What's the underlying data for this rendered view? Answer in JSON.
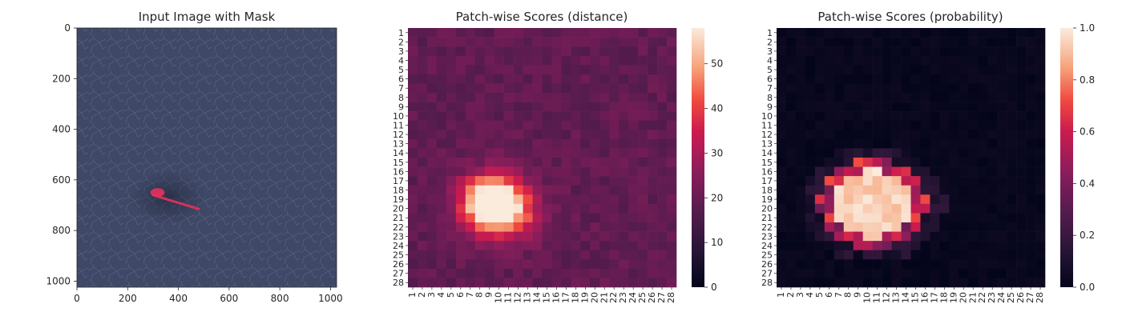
{
  "chart_data": [
    {
      "type": "image",
      "title": "Input Image with Mask",
      "xlim": [
        0,
        1024
      ],
      "ylim": [
        1024,
        0
      ],
      "x_ticks": [
        0,
        200,
        400,
        600,
        800,
        1000
      ],
      "y_ticks": [
        0,
        200,
        400,
        600,
        800,
        1000
      ],
      "background_color": "#3f4866",
      "mask_color": "#e8315a",
      "mask_region": {
        "blob_center": [
          318,
          650
        ],
        "blob_radius": [
          28,
          17
        ],
        "streak_from": [
          300,
          660
        ],
        "streak_to": [
          480,
          715
        ]
      }
    },
    {
      "type": "heatmap",
      "title": "Patch-wise Scores (distance)",
      "rows": 28,
      "cols": 28,
      "colorbar": {
        "min": 0,
        "max": 58,
        "ticks": [
          0,
          10,
          20,
          30,
          40,
          50
        ]
      },
      "colormap": "rocket",
      "background_level": 19,
      "hot_spots": [
        {
          "center": [
            9.5,
            19.5
          ],
          "sigma": [
            2.3,
            2.1
          ],
          "peak": 58
        },
        {
          "center": [
            12.5,
            21.5
          ],
          "sigma": [
            1.8,
            1.6
          ],
          "peak": 8
        }
      ]
    },
    {
      "type": "heatmap",
      "title": "Patch-wise Scores (probability)",
      "rows": 28,
      "cols": 28,
      "colorbar": {
        "min": 0.0,
        "max": 1.0,
        "ticks": [
          "0.0",
          "0.2",
          "0.4",
          "0.6",
          "0.8",
          "1.0"
        ]
      },
      "colormap": "rocket",
      "high_region": {
        "col_range": [
          5,
          16
        ],
        "row_range": [
          15,
          24
        ],
        "level": 0.9
      }
    }
  ]
}
